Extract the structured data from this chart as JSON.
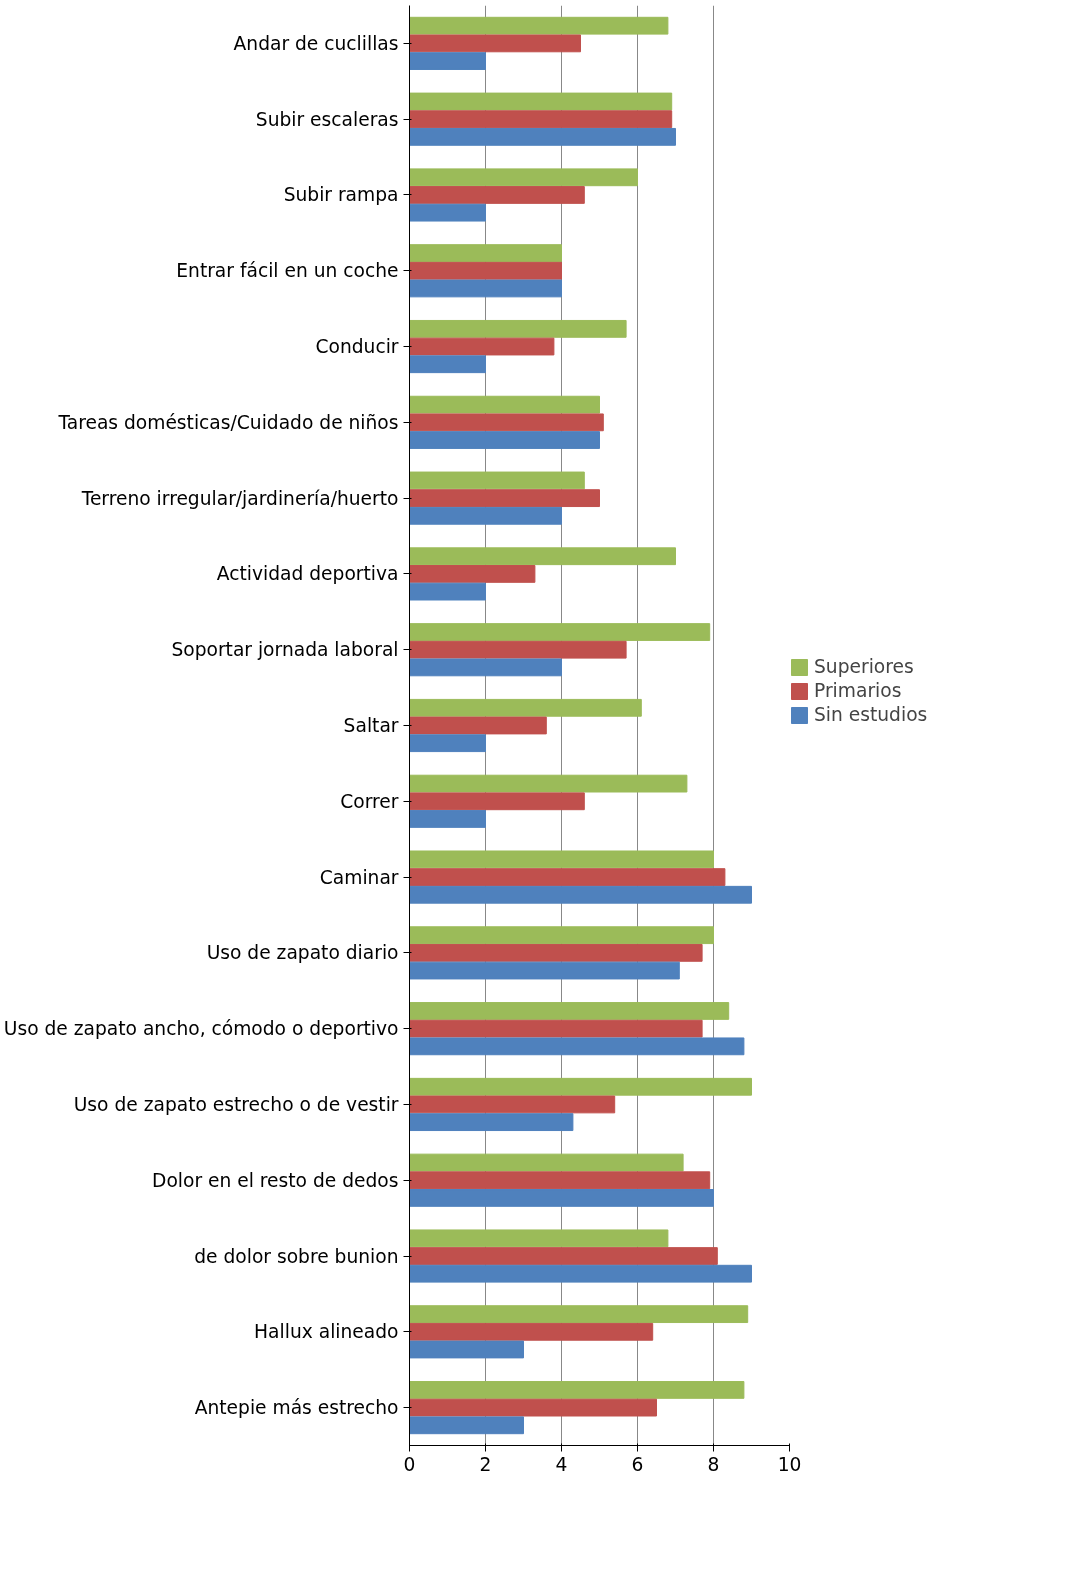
{
  "chart_data": {
    "type": "bar",
    "orientation": "horizontal",
    "categories": [
      "Andar de cuclillas",
      "Subir escaleras",
      "Subir rampa",
      "Entrar fácil en un coche",
      "Conducir",
      "Tareas domésticas/Cuidado de niños",
      "Terreno irregular/jardinería/huerto",
      "Actividad deportiva",
      "Soportar jornada laboral",
      "Saltar",
      "Correr",
      "Caminar",
      "Uso de zapato diario",
      "Uso de zapato ancho, cómodo o deportivo",
      "Uso de zapato estrecho o de vestir",
      "Dolor en el resto de dedos",
      "de dolor sobre bunion",
      "Hallux alineado",
      "Antepie más estrecho"
    ],
    "series": [
      {
        "name": "Superiores",
        "color": "#9bbb59",
        "values": [
          6.8,
          6.9,
          6.0,
          4.0,
          5.7,
          5.0,
          4.6,
          7.0,
          7.9,
          6.1,
          7.3,
          8.0,
          8.0,
          8.4,
          9.0,
          7.2,
          6.8,
          8.9,
          8.8
        ]
      },
      {
        "name": "Primarios",
        "color": "#c0504d",
        "values": [
          4.5,
          6.9,
          4.6,
          4.0,
          3.8,
          5.1,
          5.0,
          3.3,
          5.7,
          3.6,
          4.6,
          8.3,
          7.7,
          7.7,
          5.4,
          7.9,
          8.1,
          6.4,
          6.5
        ]
      },
      {
        "name": "Sin estudios",
        "color": "#4f81bd",
        "values": [
          2.0,
          7.0,
          2.0,
          4.0,
          2.0,
          5.0,
          4.0,
          2.0,
          4.0,
          2.0,
          2.0,
          9.0,
          7.1,
          8.8,
          4.3,
          8.0,
          9.0,
          3.0,
          3.0
        ]
      }
    ],
    "xlim": [
      0,
      10
    ],
    "xticks": [
      0,
      2,
      4,
      6,
      8,
      10
    ],
    "grid": "x",
    "legend": "right"
  }
}
